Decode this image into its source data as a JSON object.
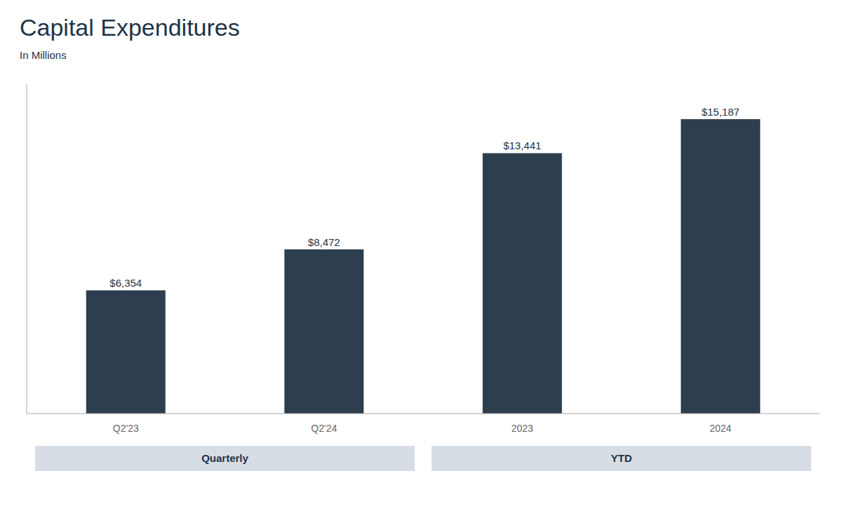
{
  "chart_data": {
    "type": "bar",
    "title": "Capital Expenditures",
    "subtitle": "In Millions",
    "categories": [
      "Q2'23",
      "Q2'24",
      "2023",
      "2024"
    ],
    "values": [
      6354,
      8472,
      13441,
      15187
    ],
    "value_labels": [
      "$6,354",
      "$8,472",
      "$13,441",
      "$15,187"
    ],
    "data_labels": true,
    "color": "#2d3f4e",
    "ylim": [
      0,
      17000
    ],
    "tick_labels": "x",
    "grid": false,
    "groups": [
      {
        "label": "Quarterly",
        "categories": [
          "Q2'23",
          "Q2'24"
        ]
      },
      {
        "label": "YTD",
        "categories": [
          "2023",
          "2024"
        ]
      }
    ]
  }
}
